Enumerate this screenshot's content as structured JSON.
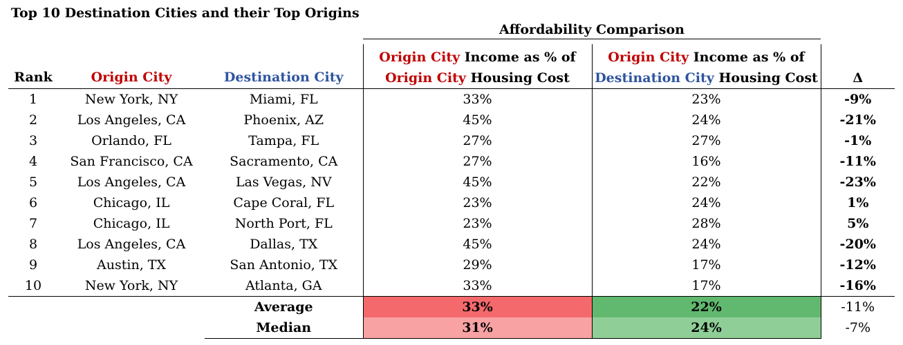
{
  "title": "Top 10 Destination Cities and their Top Origins",
  "group_header": "Affordability Comparison",
  "headers": {
    "rank": "Rank",
    "origin": "Origin City",
    "destination": "Destination City",
    "origin_pct": {
      "line1_red": "Origin City",
      "line1_rest": " Income as % of",
      "line2_red": "Origin City",
      "line2_rest": " Housing Cost"
    },
    "dest_pct": {
      "line1_red": "Origin City",
      "line1_rest": " Income as % of",
      "line2_blue": "Destination City",
      "line2_rest": " Housing Cost"
    },
    "delta": "Δ"
  },
  "colors": {
    "origin_red": "#c00000",
    "destination_blue": "#2e54a0",
    "avg_origin_bg": "#f4696c",
    "avg_dest_bg": "#61b96f",
    "median_origin_bg": "#f8a2a3",
    "median_dest_bg": "#8fcf97"
  },
  "rows": [
    {
      "rank": "1",
      "origin": "New York, NY",
      "destination": "Miami, FL",
      "origin_pct": "33%",
      "dest_pct": "23%",
      "delta": "-9%"
    },
    {
      "rank": "2",
      "origin": "Los Angeles, CA",
      "destination": "Phoenix, AZ",
      "origin_pct": "45%",
      "dest_pct": "24%",
      "delta": "-21%"
    },
    {
      "rank": "3",
      "origin": "Orlando, FL",
      "destination": "Tampa, FL",
      "origin_pct": "27%",
      "dest_pct": "27%",
      "delta": "-1%"
    },
    {
      "rank": "4",
      "origin": "San Francisco, CA",
      "destination": "Sacramento, CA",
      "origin_pct": "27%",
      "dest_pct": "16%",
      "delta": "-11%"
    },
    {
      "rank": "5",
      "origin": "Los Angeles, CA",
      "destination": "Las Vegas, NV",
      "origin_pct": "45%",
      "dest_pct": "22%",
      "delta": "-23%"
    },
    {
      "rank": "6",
      "origin": "Chicago, IL",
      "destination": "Cape Coral, FL",
      "origin_pct": "23%",
      "dest_pct": "24%",
      "delta": "1%"
    },
    {
      "rank": "7",
      "origin": "Chicago, IL",
      "destination": "North Port, FL",
      "origin_pct": "23%",
      "dest_pct": "28%",
      "delta": "5%"
    },
    {
      "rank": "8",
      "origin": "Los Angeles, CA",
      "destination": "Dallas, TX",
      "origin_pct": "45%",
      "dest_pct": "24%",
      "delta": "-20%"
    },
    {
      "rank": "9",
      "origin": "Austin, TX",
      "destination": "San Antonio, TX",
      "origin_pct": "29%",
      "dest_pct": "17%",
      "delta": "-12%"
    },
    {
      "rank": "10",
      "origin": "New York, NY",
      "destination": "Atlanta, GA",
      "origin_pct": "33%",
      "dest_pct": "17%",
      "delta": "-16%"
    }
  ],
  "summary": {
    "average": {
      "label": "Average",
      "origin_pct": "33%",
      "dest_pct": "22%",
      "delta": "-11%"
    },
    "median": {
      "label": "Median",
      "origin_pct": "31%",
      "dest_pct": "24%",
      "delta": "-7%"
    }
  }
}
